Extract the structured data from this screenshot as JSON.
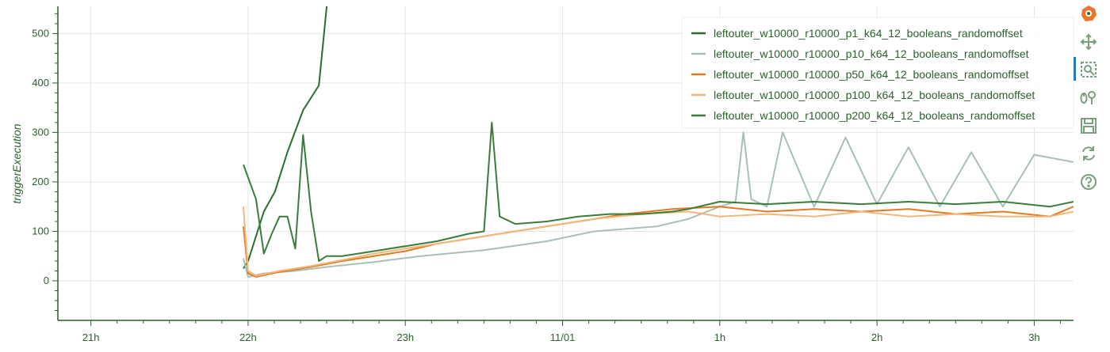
{
  "colors": {
    "axis": "#2c5f2d",
    "grid": "#e6e6e6",
    "series": [
      "#2c6e2f",
      "#a9bfb7",
      "#e07b24",
      "#f2b77a",
      "#3a7d3a"
    ],
    "toolbar_logo": "#e9762b",
    "toolbar_icon": "#7a9e7e"
  },
  "toolbar": {
    "tools": [
      "bokeh-logo-icon",
      "pan-icon",
      "box-zoom-icon",
      "wheel-zoom-icon",
      "save-icon",
      "reset-icon",
      "help-icon"
    ]
  },
  "chart_data": {
    "type": "line",
    "ylabel": "triggerExecution",
    "xlabel": "",
    "title": "",
    "x_unit": "hours since 21h",
    "xlim": [
      -0.21,
      6.25
    ],
    "ylim": [
      -80,
      555
    ],
    "x_ticks": [
      {
        "x": 0,
        "label": "21h"
      },
      {
        "x": 1,
        "label": "22h"
      },
      {
        "x": 2,
        "label": "23h"
      },
      {
        "x": 3,
        "label": "11/01"
      },
      {
        "x": 4,
        "label": "1h"
      },
      {
        "x": 5,
        "label": "2h"
      },
      {
        "x": 6,
        "label": "3h"
      }
    ],
    "y_ticks": [
      0,
      100,
      200,
      300,
      400,
      500
    ],
    "grid": true,
    "legend_position": "top-right",
    "series": [
      {
        "name": "leftouter_w10000_r10000_p1_k64_12_booleans_randomoffset",
        "x": [
          0.97,
          1.0,
          1.05,
          1.1,
          1.17,
          1.25,
          1.35,
          1.45,
          1.5
        ],
        "values": [
          25,
          40,
          90,
          140,
          180,
          260,
          345,
          395,
          555
        ]
      },
      {
        "name": "leftouter_w10000_r10000_p10_k64_12_booleans_randomoffset",
        "x": [
          0.97,
          1.0,
          1.1,
          1.3,
          1.5,
          1.8,
          2.1,
          2.5,
          2.9,
          3.2,
          3.6,
          3.8,
          4.0,
          4.1,
          4.15,
          4.2,
          4.3,
          4.4,
          4.6,
          4.8,
          5.0,
          5.2,
          5.4,
          5.6,
          5.8,
          6.0,
          6.25
        ],
        "values": [
          45,
          8,
          15,
          20,
          28,
          38,
          50,
          62,
          80,
          100,
          110,
          125,
          150,
          160,
          300,
          165,
          150,
          300,
          150,
          290,
          155,
          270,
          150,
          260,
          150,
          255,
          240
        ]
      },
      {
        "name": "leftouter_w10000_r10000_p50_k64_12_booleans_randomoffset",
        "x": [
          0.97,
          1.0,
          1.05,
          1.2,
          1.4,
          1.6,
          1.8,
          2.0,
          2.2,
          2.5,
          2.8,
          3.1,
          3.4,
          3.7,
          4.0,
          4.3,
          4.6,
          4.9,
          5.2,
          5.5,
          5.8,
          6.1,
          6.25
        ],
        "values": [
          110,
          15,
          8,
          18,
          28,
          40,
          50,
          60,
          75,
          90,
          105,
          120,
          135,
          145,
          150,
          140,
          145,
          140,
          145,
          135,
          140,
          130,
          150
        ]
      },
      {
        "name": "leftouter_w10000_r10000_p100_k64_12_booleans_randomoffset",
        "x": [
          0.97,
          1.0,
          1.05,
          1.2,
          1.4,
          1.6,
          1.8,
          2.0,
          2.3,
          2.6,
          2.9,
          3.2,
          3.5,
          3.8,
          4.0,
          4.3,
          4.6,
          4.9,
          5.2,
          5.5,
          5.8,
          6.1,
          6.25
        ],
        "values": [
          150,
          20,
          10,
          20,
          30,
          42,
          55,
          65,
          80,
          95,
          110,
          125,
          135,
          140,
          130,
          135,
          130,
          140,
          130,
          135,
          130,
          130,
          140
        ]
      },
      {
        "name": "leftouter_w10000_r10000_p200_k64_12_booleans_randomoffset",
        "x": [
          0.97,
          1.05,
          1.1,
          1.15,
          1.2,
          1.25,
          1.3,
          1.35,
          1.4,
          1.45,
          1.5,
          1.6,
          1.7,
          1.8,
          2.0,
          2.2,
          2.4,
          2.5,
          2.55,
          2.6,
          2.7,
          2.9,
          3.1,
          3.3,
          3.5,
          3.7,
          3.8,
          4.0,
          4.3,
          4.6,
          4.9,
          5.2,
          5.5,
          5.8,
          6.1,
          6.25
        ],
        "values": [
          235,
          165,
          55,
          95,
          130,
          130,
          65,
          295,
          140,
          40,
          50,
          50,
          55,
          60,
          70,
          80,
          95,
          100,
          320,
          130,
          115,
          120,
          130,
          135,
          135,
          140,
          145,
          160,
          155,
          160,
          155,
          160,
          155,
          160,
          150,
          160
        ]
      }
    ]
  }
}
